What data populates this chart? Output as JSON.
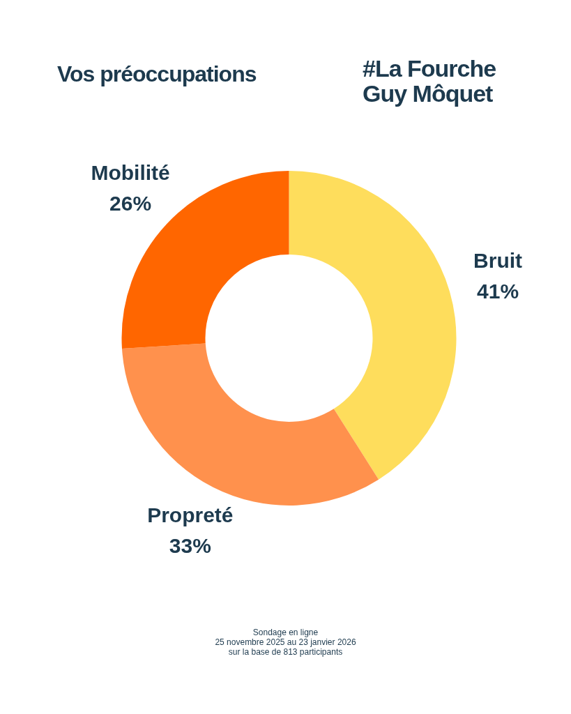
{
  "chart_data": {
    "type": "donut",
    "title": "Vos préoccupations",
    "subtitle": "#La Fourche Guy Môquet",
    "categories": [
      "Bruit",
      "Propreté",
      "Mobilité"
    ],
    "values": [
      41,
      33,
      26
    ],
    "colors": [
      "#fedd5c",
      "#ff914d",
      "#ff6600"
    ],
    "value_labels": [
      "41%",
      "33%",
      "26%"
    ],
    "annotations": [
      "Sondage en ligne",
      "25 novembre 2025 au 23 janvier 2026",
      "sur la base de 813 participants"
    ]
  }
}
